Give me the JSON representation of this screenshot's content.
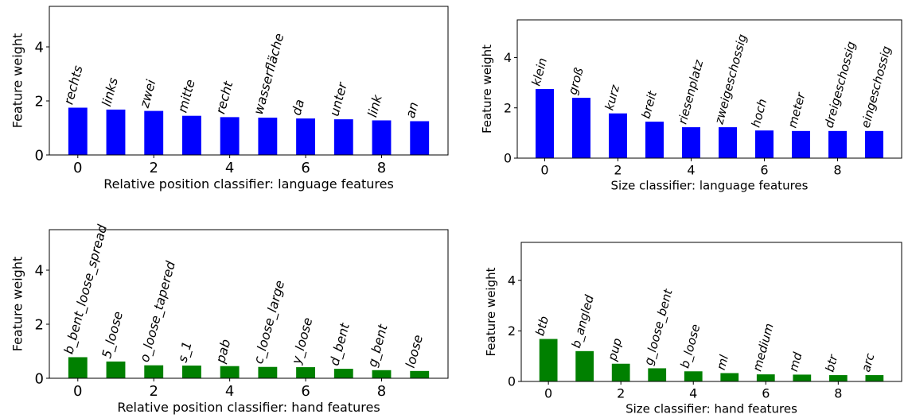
{
  "chart_data": [
    {
      "type": "bar",
      "xlabel": "Relative position classifier: language features",
      "ylabel": "Feature weight",
      "color": "#0000ff",
      "x": [
        0,
        1,
        2,
        3,
        4,
        5,
        6,
        7,
        8,
        9
      ],
      "labels": [
        "rechts",
        "links",
        "zwei",
        "mitte",
        "recht",
        "wasserfläche",
        "da",
        "unter",
        "link",
        "an"
      ],
      "values": [
        1.75,
        1.68,
        1.63,
        1.45,
        1.4,
        1.38,
        1.35,
        1.32,
        1.28,
        1.25
      ],
      "xticks": [
        "0",
        "2",
        "4",
        "6",
        "8"
      ],
      "yticks": [
        "0",
        "2",
        "4"
      ],
      "ylim": [
        0,
        5.5
      ]
    },
    {
      "type": "bar",
      "xlabel": "Size classifier: language features",
      "ylabel": "Feature weight",
      "color": "#0000ff",
      "x": [
        0,
        1,
        2,
        3,
        4,
        5,
        6,
        7,
        8,
        9
      ],
      "labels": [
        "klein",
        "groß",
        "kurz",
        "breit",
        "riesenplatz",
        "zweigeschossig",
        "hoch",
        "meter",
        "dreigeschossig",
        "eingeschossig"
      ],
      "values": [
        2.75,
        2.4,
        1.78,
        1.45,
        1.23,
        1.23,
        1.1,
        1.08,
        1.08,
        1.08
      ],
      "xticks": [
        "0",
        "2",
        "4",
        "6",
        "8"
      ],
      "yticks": [
        "0",
        "2",
        "4"
      ],
      "ylim": [
        0,
        5.5
      ]
    },
    {
      "type": "bar",
      "xlabel": "Relative position classifier: hand features",
      "ylabel": "Feature weight",
      "color": "#008000",
      "x": [
        0,
        1,
        2,
        3,
        4,
        5,
        6,
        7,
        8,
        9
      ],
      "labels": [
        "b_bent_loose_spread",
        "5_loose",
        "o_loose_tapered",
        "s_1",
        "pab",
        "c_loose_large",
        "y_loose",
        "d_bent",
        "g_bent",
        "loose"
      ],
      "values": [
        0.78,
        0.62,
        0.48,
        0.47,
        0.45,
        0.42,
        0.41,
        0.35,
        0.3,
        0.27
      ],
      "xticks": [
        "0",
        "2",
        "4",
        "6",
        "8"
      ],
      "yticks": [
        "0",
        "2",
        "4"
      ],
      "ylim": [
        0,
        5.5
      ]
    },
    {
      "type": "bar",
      "xlabel": "Size classifier: hand features",
      "ylabel": "Feature weight",
      "color": "#008000",
      "x": [
        0,
        1,
        2,
        3,
        4,
        5,
        6,
        7,
        8,
        9
      ],
      "labels": [
        "btb",
        "b_angled",
        "pup",
        "g_loose_bent",
        "b_loose",
        "ml",
        "medium",
        "md",
        "btr",
        "arc"
      ],
      "values": [
        1.68,
        1.2,
        0.7,
        0.52,
        0.4,
        0.33,
        0.28,
        0.27,
        0.25,
        0.25
      ],
      "xticks": [
        "0",
        "2",
        "4",
        "6",
        "8"
      ],
      "yticks": [
        "0",
        "2",
        "4"
      ],
      "ylim": [
        0,
        5.5
      ]
    }
  ]
}
